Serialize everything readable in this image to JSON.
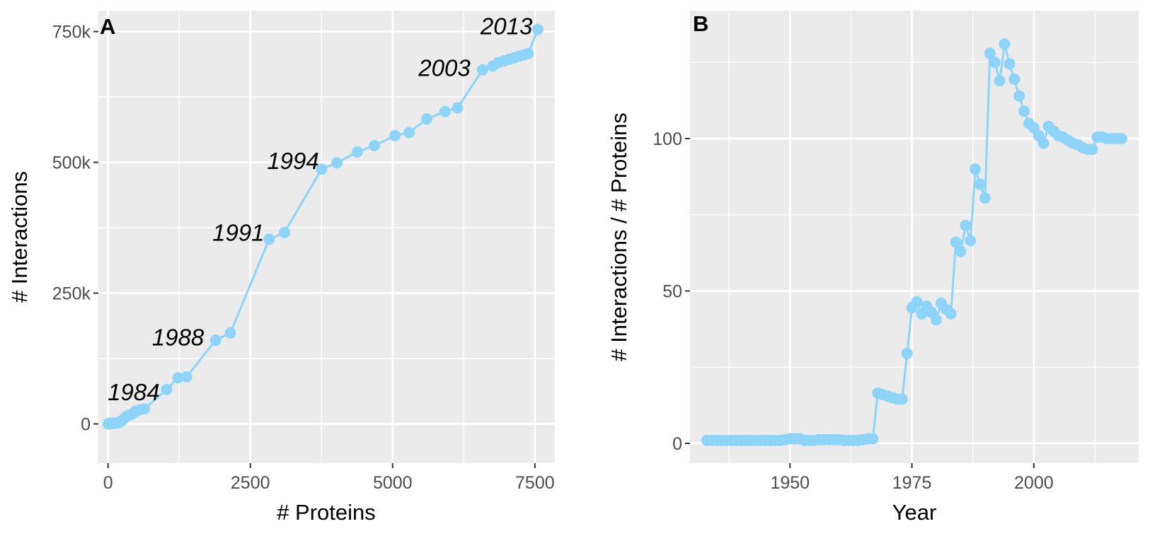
{
  "chart_data": [
    {
      "type": "line",
      "panel": "A",
      "xlabel": "# Proteins",
      "ylabel": "# Interactions",
      "xlim": [
        -170,
        7850
      ],
      "ylim": [
        -75000,
        790000
      ],
      "x_ticks": [
        0,
        2500,
        5000,
        7500
      ],
      "x_tick_labels": [
        "0",
        "2500",
        "5000",
        "7500"
      ],
      "y_ticks": [
        0,
        250000,
        500000,
        750000
      ],
      "y_tick_labels": [
        "0",
        "250k",
        "500k",
        "750k"
      ],
      "grid": true,
      "color": "#8ED3F8",
      "series": [
        {
          "x": [
            0,
            30,
            70,
            110,
            150,
            200,
            240,
            300,
            350,
            420,
            480,
            560,
            640,
            1030,
            1230,
            1380,
            1890,
            2150,
            2830,
            3100,
            3750,
            4020,
            4380,
            4680,
            5040,
            5290,
            5600,
            5920,
            6140,
            6580,
            6760,
            6860,
            6960,
            7050,
            7140,
            7230,
            7320,
            7380,
            7550
          ],
          "y": [
            0,
            1000,
            500,
            2000,
            1500,
            3000,
            6000,
            12000,
            16000,
            19000,
            24000,
            27000,
            29000,
            66000,
            88000,
            90000,
            160000,
            174000,
            353000,
            366000,
            487000,
            499000,
            520000,
            532000,
            551000,
            557000,
            583000,
            597000,
            604000,
            677000,
            684000,
            691000,
            694000,
            697000,
            700000,
            703000,
            706000,
            708000,
            754000
          ]
        }
      ],
      "annotations": [
        {
          "text": "1984",
          "x": 450,
          "y": 45000
        },
        {
          "text": "1988",
          "x": 1230,
          "y": 150000
        },
        {
          "text": "1991",
          "x": 2290,
          "y": 350000
        },
        {
          "text": "1994",
          "x": 3250,
          "y": 487000
        },
        {
          "text": "2003",
          "x": 5910,
          "y": 665000
        },
        {
          "text": "2013",
          "x": 7000,
          "y": 745000
        }
      ]
    },
    {
      "type": "line",
      "panel": "B",
      "xlabel": "Year",
      "ylabel": "# Interactions / # Proteins",
      "xlim": [
        1929.5,
        2021.5
      ],
      "ylim": [
        -6.5,
        142
      ],
      "x_ticks": [
        1950,
        1975,
        2000
      ],
      "x_tick_labels": [
        "1950",
        "1975",
        "2000"
      ],
      "y_ticks": [
        0,
        50,
        100
      ],
      "y_tick_labels": [
        "0",
        "50",
        "100"
      ],
      "grid": true,
      "color": "#8ED3F8",
      "series": [
        {
          "x": [
            1933,
            1934,
            1935,
            1936,
            1937,
            1938,
            1939,
            1940,
            1941,
            1942,
            1943,
            1944,
            1945,
            1946,
            1947,
            1948,
            1949,
            1950,
            1951,
            1952,
            1953,
            1954,
            1955,
            1956,
            1957,
            1958,
            1959,
            1960,
            1961,
            1962,
            1963,
            1964,
            1965,
            1966,
            1967,
            1968,
            1969,
            1970,
            1971,
            1972,
            1973,
            1974,
            1975,
            1976,
            1977,
            1978,
            1979,
            1980,
            1981,
            1982,
            1983,
            1984,
            1985,
            1986,
            1987,
            1988,
            1989,
            1990,
            1991,
            1992,
            1993,
            1994,
            1995,
            1996,
            1997,
            1998,
            1999,
            2000,
            2001,
            2002,
            2003,
            2004,
            2005,
            2006,
            2007,
            2008,
            2009,
            2010,
            2011,
            2012,
            2013,
            2014,
            2015,
            2016,
            2017,
            2018
          ],
          "y": [
            1,
            1,
            1,
            1,
            1,
            1,
            1,
            1,
            1,
            1,
            1,
            1,
            1,
            1,
            1,
            1,
            1.2,
            1.5,
            1.5,
            1.5,
            1,
            1,
            1,
            1.2,
            1.2,
            1.2,
            1.2,
            1.2,
            1,
            1,
            1,
            1,
            1.2,
            1.5,
            1.5,
            16.5,
            16,
            15.5,
            15,
            14.5,
            14.5,
            29.5,
            44.5,
            46.5,
            42.5,
            45,
            43,
            40.5,
            46,
            44,
            42.5,
            66,
            63,
            71.5,
            66.5,
            90,
            85,
            80.5,
            128,
            125,
            119,
            131,
            124.5,
            119.5,
            114,
            109,
            105,
            103.5,
            101,
            98.5,
            104,
            102.5,
            101,
            100.5,
            99.5,
            98.5,
            98,
            97,
            96.5,
            96.5,
            100.5,
            100.5,
            100,
            100,
            100,
            100
          ]
        }
      ]
    }
  ]
}
